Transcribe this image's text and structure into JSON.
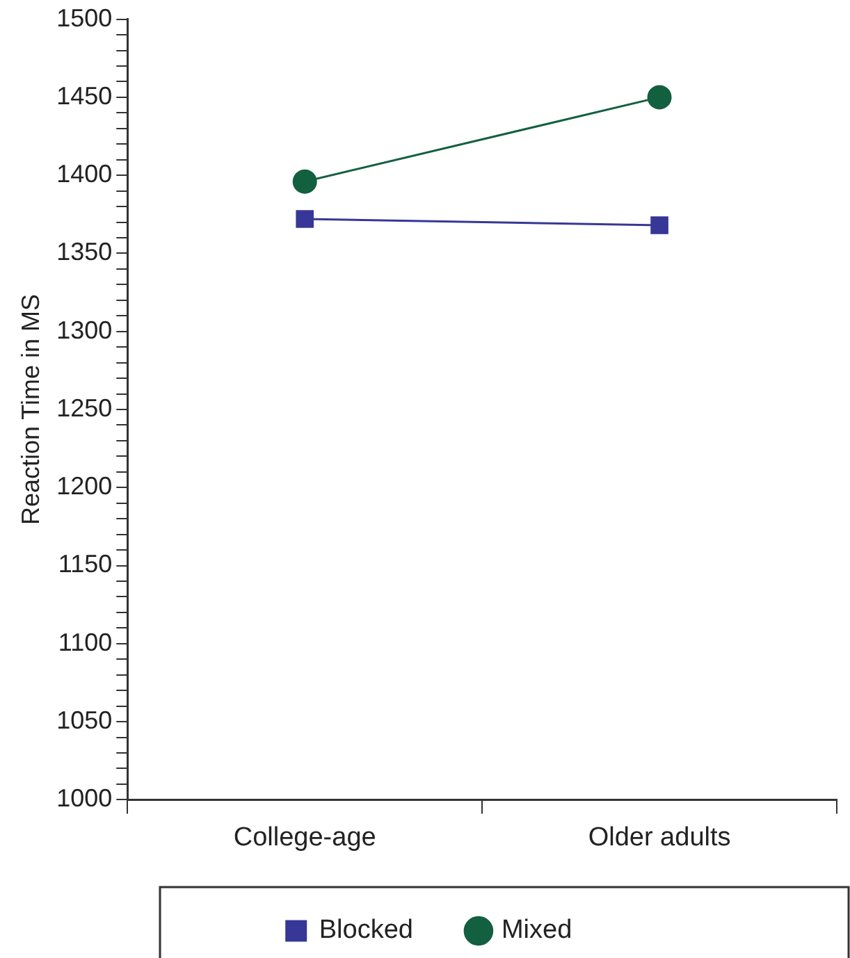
{
  "chart_data": {
    "type": "line",
    "ylabel": "Reaction Time in MS",
    "categories": [
      "College-age",
      "Older adults"
    ],
    "series": [
      {
        "name": "Blocked",
        "color": "#373797",
        "values": [
          1372,
          1368
        ],
        "marker": "square"
      },
      {
        "name": "Mixed",
        "color": "#136040",
        "values": [
          1396,
          1450
        ],
        "marker": "circle"
      }
    ],
    "ylim": [
      1000,
      1500
    ],
    "yticks": [
      1000,
      {
        "value": 1010,
        "label": null
      },
      {
        "value": 1020,
        "label": null
      },
      {
        "value": 1030,
        "label": null
      },
      {
        "value": 1040,
        "label": null
      },
      1050,
      {
        "value": 1060,
        "label": null
      },
      {
        "value": 1070,
        "label": null
      },
      {
        "value": 1080,
        "label": null
      },
      {
        "value": 1090,
        "label": null
      },
      1100,
      {
        "value": 1110,
        "label": null
      },
      {
        "value": 1120,
        "label": null
      },
      {
        "value": 1130,
        "label": null
      },
      {
        "value": 1140,
        "label": null
      },
      1150,
      {
        "value": 1160,
        "label": null
      },
      {
        "value": 1170,
        "label": null
      },
      {
        "value": 1180,
        "label": null
      },
      {
        "value": 1190,
        "label": null
      },
      1200,
      {
        "value": 1210,
        "label": null
      },
      {
        "value": 1220,
        "label": null
      },
      {
        "value": 1230,
        "label": null
      },
      {
        "value": 1240,
        "label": null
      },
      1250,
      {
        "value": 1260,
        "label": null
      },
      {
        "value": 1270,
        "label": null
      },
      {
        "value": 1280,
        "label": null
      },
      {
        "value": 1290,
        "label": null
      },
      1300,
      {
        "value": 1310,
        "label": null
      },
      {
        "value": 1320,
        "label": null
      },
      {
        "value": 1330,
        "label": null
      },
      {
        "value": 1340,
        "label": null
      },
      1350,
      {
        "value": 1360,
        "label": null
      },
      {
        "value": 1370,
        "label": null
      },
      {
        "value": 1380,
        "label": null
      },
      {
        "value": 1390,
        "label": null
      },
      1400,
      {
        "value": 1410,
        "label": null
      },
      {
        "value": 1420,
        "label": null
      },
      {
        "value": 1430,
        "label": null
      },
      {
        "value": 1440,
        "label": null
      },
      1450,
      {
        "value": 1460,
        "label": null
      },
      {
        "value": 1470,
        "label": null
      },
      {
        "value": 1480,
        "label": null
      },
      {
        "value": 1490,
        "label": null
      },
      1500
    ],
    "grid": false,
    "legend": "bottom",
    "line_style": "solid"
  }
}
